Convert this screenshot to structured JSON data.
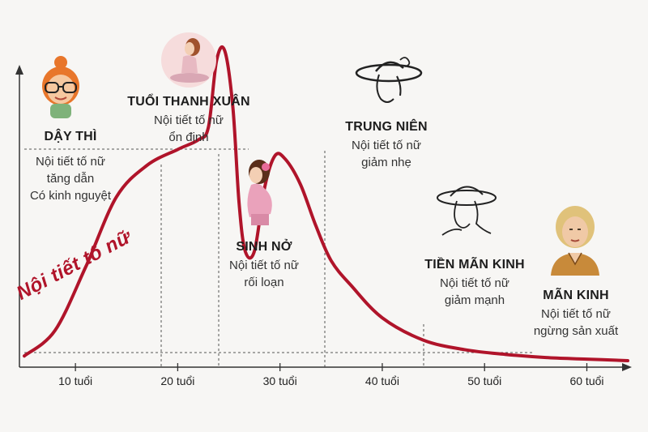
{
  "chart_data": {
    "type": "line",
    "ylabel": "Nội tiết tố nữ",
    "x_ticks": [
      "10 tuổi",
      "20 tuổi",
      "30 tuổi",
      "40 tuổi",
      "50 tuổi",
      "60 tuổi"
    ],
    "x_tick_values": [
      10,
      20,
      30,
      40,
      50,
      60
    ],
    "xlim": [
      5,
      64
    ],
    "ylim": [
      0,
      100
    ],
    "series": [
      {
        "points": [
          [
            5,
            2
          ],
          [
            8,
            10
          ],
          [
            11,
            30
          ],
          [
            14,
            52
          ],
          [
            17,
            62
          ],
          [
            20,
            67
          ],
          [
            22,
            70
          ],
          [
            23,
            74
          ],
          [
            23.8,
            95
          ],
          [
            24.6,
            98
          ],
          [
            25.4,
            80
          ],
          [
            26,
            50
          ],
          [
            26.6,
            35
          ],
          [
            27.5,
            35
          ],
          [
            28.5,
            55
          ],
          [
            29.5,
            65
          ],
          [
            30.5,
            64
          ],
          [
            32,
            56
          ],
          [
            33.5,
            43
          ],
          [
            35,
            32
          ],
          [
            37,
            24
          ],
          [
            40,
            14
          ],
          [
            44,
            7
          ],
          [
            48,
            4
          ],
          [
            52,
            2.5
          ],
          [
            56,
            1.5
          ],
          [
            60,
            1
          ],
          [
            64,
            0.5
          ]
        ]
      }
    ],
    "color": "#b0142a"
  },
  "stages": {
    "day_thi": {
      "title": "DẬY THÌ",
      "line1": "Nội tiết tố nữ",
      "line2": "tăng dẫn",
      "line3": "Có kinh nguyệt"
    },
    "thanh_xuan": {
      "title": "TUỔI THANH XUÂN",
      "line1": "Nội tiết tố nữ",
      "line2": "ổn định"
    },
    "sinh_no": {
      "title": "SINH NỞ",
      "line1": "Nội tiết tố nữ",
      "line2": "rối loạn"
    },
    "trung_nien": {
      "title": "TRUNG NIÊN",
      "line1": "Nội tiết tố nữ",
      "line2": "giảm nhẹ"
    },
    "tien_man_kinh": {
      "title": "TIỀN MÃN KINH",
      "line1": "Nội tiết tố nữ",
      "line2": "giảm mạnh"
    },
    "man_kinh": {
      "title": "MÃN KINH",
      "line1": "Nội tiết tố nữ",
      "line2": "ngừng sản xuất"
    }
  },
  "icons": [
    "girl-glasses-icon",
    "woman-meditating-icon",
    "pregnant-woman-icon",
    "woman-hat-icon",
    "woman-hat-sketch-icon",
    "older-woman-icon"
  ]
}
